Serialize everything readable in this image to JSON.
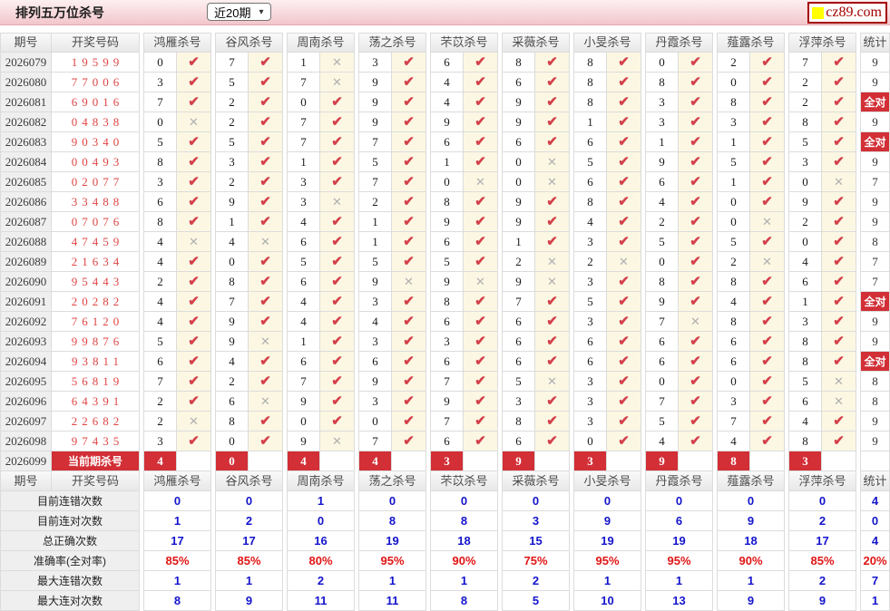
{
  "topbar": {
    "title": "排列五万位杀号",
    "range_value": "近20期",
    "logo_text": "cz89.com"
  },
  "icons": {
    "check": "✔",
    "cross": "✕",
    "dropdown_arrow": "▾",
    "logo_square": "yellow-square"
  },
  "colors": {
    "accent_red": "#d22f36",
    "check_red": "#d4414b",
    "cross_gray": "#b0b0b0",
    "draw_red": "#e04545",
    "summary_blue": "#1414cc",
    "summary_red": "#e01515",
    "topbar_pink": "#f2c6cb",
    "mark_cell_cream": "#fbf7e3"
  },
  "table": {
    "all_correct_label": "全对",
    "col_headers": {
      "period": "期号",
      "draw": "开奖号码",
      "kills": [
        "鸿雁杀号",
        "谷风杀号",
        "周南杀号",
        "荡之杀号",
        "芣苡杀号",
        "采薇杀号",
        "小旻杀号",
        "丹霞杀号",
        "薤露杀号",
        "浮萍杀号"
      ],
      "stat": "统计"
    },
    "rows": [
      {
        "period": "2026079",
        "draw": "19599",
        "kills": [
          [
            "0",
            1
          ],
          [
            "7",
            1
          ],
          [
            "1",
            0
          ],
          [
            "3",
            1
          ],
          [
            "6",
            1
          ],
          [
            "8",
            1
          ],
          [
            "8",
            1
          ],
          [
            "0",
            1
          ],
          [
            "2",
            1
          ],
          [
            "7",
            1
          ]
        ],
        "stat": "9"
      },
      {
        "period": "2026080",
        "draw": "77006",
        "kills": [
          [
            "3",
            1
          ],
          [
            "5",
            1
          ],
          [
            "7",
            0
          ],
          [
            "9",
            1
          ],
          [
            "4",
            1
          ],
          [
            "6",
            1
          ],
          [
            "8",
            1
          ],
          [
            "8",
            1
          ],
          [
            "0",
            1
          ],
          [
            "2",
            1
          ]
        ],
        "stat": "9"
      },
      {
        "period": "2026081",
        "draw": "69016",
        "kills": [
          [
            "7",
            1
          ],
          [
            "2",
            1
          ],
          [
            "0",
            1
          ],
          [
            "9",
            1
          ],
          [
            "4",
            1
          ],
          [
            "9",
            1
          ],
          [
            "8",
            1
          ],
          [
            "3",
            1
          ],
          [
            "8",
            1
          ],
          [
            "2",
            1
          ]
        ],
        "stat": "全对"
      },
      {
        "period": "2026082",
        "draw": "04838",
        "kills": [
          [
            "0",
            0
          ],
          [
            "2",
            1
          ],
          [
            "7",
            1
          ],
          [
            "9",
            1
          ],
          [
            "9",
            1
          ],
          [
            "9",
            1
          ],
          [
            "1",
            1
          ],
          [
            "3",
            1
          ],
          [
            "3",
            1
          ],
          [
            "8",
            1
          ]
        ],
        "stat": "9"
      },
      {
        "period": "2026083",
        "draw": "90340",
        "kills": [
          [
            "5",
            1
          ],
          [
            "5",
            1
          ],
          [
            "7",
            1
          ],
          [
            "7",
            1
          ],
          [
            "6",
            1
          ],
          [
            "6",
            1
          ],
          [
            "6",
            1
          ],
          [
            "1",
            1
          ],
          [
            "1",
            1
          ],
          [
            "5",
            1
          ]
        ],
        "stat": "全对"
      },
      {
        "period": "2026084",
        "draw": "00493",
        "kills": [
          [
            "8",
            1
          ],
          [
            "3",
            1
          ],
          [
            "1",
            1
          ],
          [
            "5",
            1
          ],
          [
            "1",
            1
          ],
          [
            "0",
            0
          ],
          [
            "5",
            1
          ],
          [
            "9",
            1
          ],
          [
            "5",
            1
          ],
          [
            "3",
            1
          ]
        ],
        "stat": "9"
      },
      {
        "period": "2026085",
        "draw": "02077",
        "kills": [
          [
            "3",
            1
          ],
          [
            "2",
            1
          ],
          [
            "3",
            1
          ],
          [
            "7",
            1
          ],
          [
            "0",
            0
          ],
          [
            "0",
            0
          ],
          [
            "6",
            1
          ],
          [
            "6",
            1
          ],
          [
            "1",
            1
          ],
          [
            "0",
            0
          ]
        ],
        "stat": "7"
      },
      {
        "period": "2026086",
        "draw": "33488",
        "kills": [
          [
            "6",
            1
          ],
          [
            "9",
            1
          ],
          [
            "3",
            0
          ],
          [
            "2",
            1
          ],
          [
            "8",
            1
          ],
          [
            "9",
            1
          ],
          [
            "8",
            1
          ],
          [
            "4",
            1
          ],
          [
            "0",
            1
          ],
          [
            "9",
            1
          ]
        ],
        "stat": "9"
      },
      {
        "period": "2026087",
        "draw": "07076",
        "kills": [
          [
            "8",
            1
          ],
          [
            "1",
            1
          ],
          [
            "4",
            1
          ],
          [
            "1",
            1
          ],
          [
            "9",
            1
          ],
          [
            "9",
            1
          ],
          [
            "4",
            1
          ],
          [
            "2",
            1
          ],
          [
            "0",
            0
          ],
          [
            "2",
            1
          ]
        ],
        "stat": "9"
      },
      {
        "period": "2026088",
        "draw": "47459",
        "kills": [
          [
            "4",
            0
          ],
          [
            "4",
            0
          ],
          [
            "6",
            1
          ],
          [
            "1",
            1
          ],
          [
            "6",
            1
          ],
          [
            "1",
            1
          ],
          [
            "3",
            1
          ],
          [
            "5",
            1
          ],
          [
            "5",
            1
          ],
          [
            "0",
            1
          ]
        ],
        "stat": "8"
      },
      {
        "period": "2026089",
        "draw": "21634",
        "kills": [
          [
            "4",
            1
          ],
          [
            "0",
            1
          ],
          [
            "5",
            1
          ],
          [
            "5",
            1
          ],
          [
            "5",
            1
          ],
          [
            "2",
            0
          ],
          [
            "2",
            0
          ],
          [
            "0",
            1
          ],
          [
            "2",
            0
          ],
          [
            "4",
            1
          ]
        ],
        "stat": "7"
      },
      {
        "period": "2026090",
        "draw": "95443",
        "kills": [
          [
            "2",
            1
          ],
          [
            "8",
            1
          ],
          [
            "6",
            1
          ],
          [
            "9",
            0
          ],
          [
            "9",
            0
          ],
          [
            "9",
            0
          ],
          [
            "3",
            1
          ],
          [
            "8",
            1
          ],
          [
            "8",
            1
          ],
          [
            "6",
            1
          ]
        ],
        "stat": "7"
      },
      {
        "period": "2026091",
        "draw": "20282",
        "kills": [
          [
            "4",
            1
          ],
          [
            "7",
            1
          ],
          [
            "4",
            1
          ],
          [
            "3",
            1
          ],
          [
            "8",
            1
          ],
          [
            "7",
            1
          ],
          [
            "5",
            1
          ],
          [
            "9",
            1
          ],
          [
            "4",
            1
          ],
          [
            "1",
            1
          ]
        ],
        "stat": "全对"
      },
      {
        "period": "2026092",
        "draw": "76120",
        "kills": [
          [
            "4",
            1
          ],
          [
            "9",
            1
          ],
          [
            "4",
            1
          ],
          [
            "4",
            1
          ],
          [
            "6",
            1
          ],
          [
            "6",
            1
          ],
          [
            "3",
            1
          ],
          [
            "7",
            0
          ],
          [
            "8",
            1
          ],
          [
            "3",
            1
          ]
        ],
        "stat": "9"
      },
      {
        "period": "2026093",
        "draw": "99876",
        "kills": [
          [
            "5",
            1
          ],
          [
            "9",
            0
          ],
          [
            "1",
            1
          ],
          [
            "3",
            1
          ],
          [
            "3",
            1
          ],
          [
            "6",
            1
          ],
          [
            "6",
            1
          ],
          [
            "6",
            1
          ],
          [
            "6",
            1
          ],
          [
            "8",
            1
          ]
        ],
        "stat": "9"
      },
      {
        "period": "2026094",
        "draw": "93811",
        "kills": [
          [
            "6",
            1
          ],
          [
            "4",
            1
          ],
          [
            "6",
            1
          ],
          [
            "6",
            1
          ],
          [
            "6",
            1
          ],
          [
            "6",
            1
          ],
          [
            "6",
            1
          ],
          [
            "6",
            1
          ],
          [
            "6",
            1
          ],
          [
            "8",
            1
          ]
        ],
        "stat": "全对"
      },
      {
        "period": "2026095",
        "draw": "56819",
        "kills": [
          [
            "7",
            1
          ],
          [
            "2",
            1
          ],
          [
            "7",
            1
          ],
          [
            "9",
            1
          ],
          [
            "7",
            1
          ],
          [
            "5",
            0
          ],
          [
            "3",
            1
          ],
          [
            "0",
            1
          ],
          [
            "0",
            1
          ],
          [
            "5",
            0
          ]
        ],
        "stat": "8"
      },
      {
        "period": "2026096",
        "draw": "64391",
        "kills": [
          [
            "2",
            1
          ],
          [
            "6",
            0
          ],
          [
            "9",
            1
          ],
          [
            "3",
            1
          ],
          [
            "9",
            1
          ],
          [
            "3",
            1
          ],
          [
            "3",
            1
          ],
          [
            "7",
            1
          ],
          [
            "3",
            1
          ],
          [
            "6",
            0
          ]
        ],
        "stat": "8"
      },
      {
        "period": "2026097",
        "draw": "22682",
        "kills": [
          [
            "2",
            0
          ],
          [
            "8",
            1
          ],
          [
            "0",
            1
          ],
          [
            "0",
            1
          ],
          [
            "7",
            1
          ],
          [
            "8",
            1
          ],
          [
            "3",
            1
          ],
          [
            "5",
            1
          ],
          [
            "7",
            1
          ],
          [
            "4",
            1
          ]
        ],
        "stat": "9"
      },
      {
        "period": "2026098",
        "draw": "97435",
        "kills": [
          [
            "3",
            1
          ],
          [
            "0",
            1
          ],
          [
            "9",
            0
          ],
          [
            "7",
            1
          ],
          [
            "6",
            1
          ],
          [
            "6",
            1
          ],
          [
            "0",
            1
          ],
          [
            "4",
            1
          ],
          [
            "4",
            1
          ],
          [
            "8",
            1
          ]
        ],
        "stat": "9"
      }
    ],
    "current_row": {
      "period": "2026099",
      "label": "当前期杀号",
      "kills": [
        "4",
        "0",
        "4",
        "4",
        "3",
        "9",
        "3",
        "9",
        "8",
        "3"
      ]
    },
    "summary_rows": [
      {
        "label": "目前连错次数",
        "values": [
          "0",
          "0",
          "1",
          "0",
          "0",
          "0",
          "0",
          "0",
          "0",
          "0"
        ],
        "stat": "4",
        "color": "blue"
      },
      {
        "label": "目前连对次数",
        "values": [
          "1",
          "2",
          "0",
          "8",
          "8",
          "3",
          "9",
          "6",
          "9",
          "2"
        ],
        "stat": "0",
        "color": "blue"
      },
      {
        "label": "总正确次数",
        "values": [
          "17",
          "17",
          "16",
          "19",
          "18",
          "15",
          "19",
          "19",
          "18",
          "17"
        ],
        "stat": "4",
        "color": "blue"
      },
      {
        "label": "准确率(全对率)",
        "values": [
          "85%",
          "85%",
          "80%",
          "95%",
          "90%",
          "75%",
          "95%",
          "95%",
          "90%",
          "85%"
        ],
        "stat": "20%",
        "color": "red"
      },
      {
        "label": "最大连错次数",
        "values": [
          "1",
          "1",
          "2",
          "1",
          "1",
          "2",
          "1",
          "1",
          "1",
          "2"
        ],
        "stat": "7",
        "color": "blue"
      },
      {
        "label": "最大连对次数",
        "values": [
          "8",
          "9",
          "11",
          "11",
          "8",
          "5",
          "10",
          "13",
          "9",
          "9"
        ],
        "stat": "1",
        "color": "blue"
      }
    ]
  }
}
